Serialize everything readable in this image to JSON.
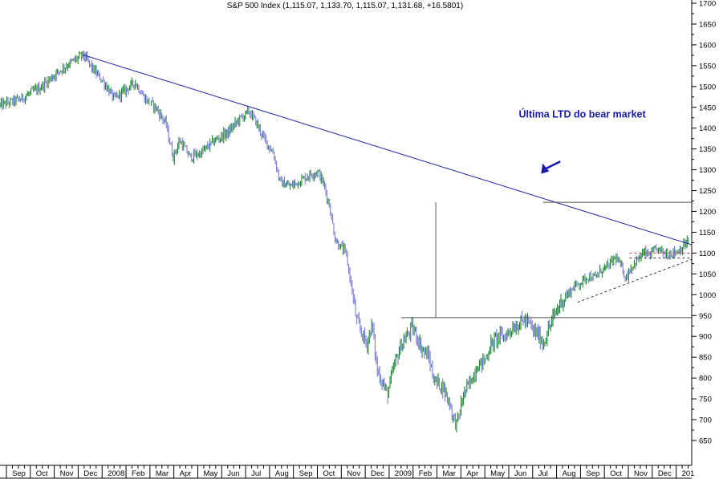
{
  "chart_data": {
    "type": "candlestick",
    "title": "S&P 500 Index (1,115.07, 1,133.70, 1,115.07, 1,131.68, +16.5801)",
    "ylim": [
      650,
      1700
    ],
    "y_ticks": [
      650,
      700,
      750,
      800,
      850,
      900,
      950,
      1000,
      1050,
      1100,
      1150,
      1200,
      1250,
      1300,
      1350,
      1400,
      1450,
      1500,
      1550,
      1600,
      1650,
      1700
    ],
    "x_ticks": [
      "Sep",
      "Oct",
      "Nov",
      "Dec",
      "2008",
      "Feb",
      "Mar",
      "Apr",
      "May",
      "Jun",
      "Jul",
      "Aug",
      "Sep",
      "Oct",
      "Nov",
      "Dec",
      "2009",
      "Feb",
      "Mar",
      "Apr",
      "May",
      "Jun",
      "Jul",
      "Aug",
      "Sep",
      "Oct",
      "Nov",
      "Dec",
      "201"
    ],
    "price_path": [
      [
        0,
        1455
      ],
      [
        3,
        1470
      ],
      [
        6,
        1500
      ],
      [
        8,
        1530
      ],
      [
        10,
        1555
      ],
      [
        12,
        1576
      ],
      [
        13.5,
        1540
      ],
      [
        15,
        1510
      ],
      [
        16.5,
        1470
      ],
      [
        18,
        1490
      ],
      [
        19.5,
        1510
      ],
      [
        21,
        1470
      ],
      [
        22.5,
        1450
      ],
      [
        24,
        1410
      ],
      [
        25,
        1330
      ],
      [
        26,
        1370
      ],
      [
        27.5,
        1330
      ],
      [
        29,
        1340
      ],
      [
        31,
        1370
      ],
      [
        33,
        1390
      ],
      [
        34.5,
        1420
      ],
      [
        36,
        1440
      ],
      [
        37,
        1415
      ],
      [
        38,
        1380
      ],
      [
        39.5,
        1340
      ],
      [
        40.5,
        1270
      ],
      [
        42,
        1260
      ],
      [
        43.5,
        1275
      ],
      [
        45,
        1290
      ],
      [
        46,
        1295
      ],
      [
        46.8,
        1265
      ],
      [
        47.6,
        1215
      ],
      [
        48.5,
        1130
      ],
      [
        50,
        1100
      ],
      [
        51,
        1000
      ],
      [
        51.5,
        940
      ],
      [
        52,
        920
      ],
      [
        53,
        880
      ],
      [
        53.8,
        930
      ],
      [
        54.5,
        820
      ],
      [
        55.3,
        790
      ],
      [
        56,
        760
      ],
      [
        57,
        830
      ],
      [
        58,
        880
      ],
      [
        59,
        905
      ],
      [
        59.5,
        920
      ],
      [
        60,
        910
      ],
      [
        61,
        870
      ],
      [
        62,
        850
      ],
      [
        62.5,
        810
      ],
      [
        63,
        790
      ],
      [
        64,
        780
      ],
      [
        65,
        740
      ],
      [
        65.6,
        700
      ],
      [
        66,
        690
      ],
      [
        66.5,
        720
      ],
      [
        67,
        760
      ],
      [
        68,
        790
      ],
      [
        69,
        830
      ],
      [
        70,
        840
      ],
      [
        71,
        880
      ],
      [
        72,
        900
      ],
      [
        73,
        900
      ],
      [
        74,
        920
      ],
      [
        75,
        930
      ],
      [
        75.8,
        940
      ],
      [
        76.5,
        930
      ],
      [
        77,
        915
      ],
      [
        78,
        900
      ],
      [
        78.5,
        880
      ],
      [
        79,
        905
      ],
      [
        80,
        945
      ],
      [
        81,
        980
      ],
      [
        82,
        1000
      ],
      [
        83,
        1020
      ],
      [
        84,
        1030
      ],
      [
        85,
        1045
      ],
      [
        86,
        1040
      ],
      [
        87,
        1060
      ],
      [
        88,
        1070
      ],
      [
        89,
        1090
      ],
      [
        90,
        1060
      ],
      [
        90.5,
        1040
      ],
      [
        91,
        1060
      ],
      [
        92,
        1080
      ],
      [
        93,
        1100
      ],
      [
        94,
        1095
      ],
      [
        95,
        1110
      ],
      [
        96,
        1100
      ],
      [
        97,
        1100
      ],
      [
        98,
        1105
      ],
      [
        99,
        1120
      ],
      [
        99.5,
        1131.68
      ]
    ],
    "lines": [
      {
        "name": "Última LTD do bear market",
        "color": "#1a1aa8",
        "points": [
          [
            12,
            1576
          ],
          [
            100,
            1120
          ]
        ]
      },
      {
        "color": "#555555",
        "points": [
          [
            78.5,
            1222
          ],
          [
            100,
            1222
          ]
        ]
      },
      {
        "color": "#555555",
        "points": [
          [
            58,
            945
          ],
          [
            100,
            945
          ]
        ]
      },
      {
        "color": "#555555",
        "points": [
          [
            63,
            1222
          ],
          [
            63,
            945
          ]
        ]
      },
      {
        "color": "#333333",
        "dash": true,
        "points": [
          [
            83.5,
            982
          ],
          [
            100,
            1085
          ]
        ]
      },
      {
        "color": "#cc3333",
        "dash": true,
        "points": [
          [
            91,
            1100
          ],
          [
            100,
            1100
          ]
        ]
      },
      {
        "color": "#333333",
        "dash": true,
        "points": [
          [
            91,
            1088
          ],
          [
            100,
            1088
          ]
        ]
      }
    ],
    "annotation": {
      "text": "Última LTD do bear market",
      "at": [
        75,
        1425
      ]
    },
    "arrow": {
      "from": [
        81,
        1320
      ],
      "to": [
        78.8,
        1302
      ],
      "color": "#1a1aa8"
    },
    "colors": {
      "up": "#1a8a2e",
      "down": "#7b7bd6",
      "axis": "#000000"
    },
    "grid": false
  }
}
